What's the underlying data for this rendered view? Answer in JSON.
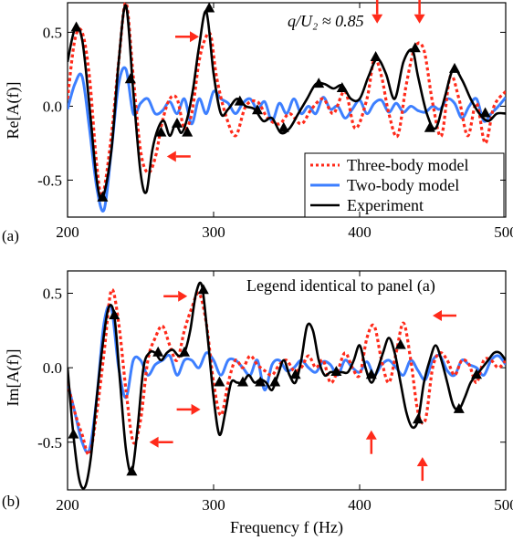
{
  "chart_data": [
    {
      "panel_label": "(a)",
      "type": "line",
      "ylabel": "Re[A(f)]",
      "annotation": "q/U₂ ≈ 0.85",
      "xlim": [
        200,
        500
      ],
      "ylim": [
        -0.75,
        0.7
      ],
      "xticks": [
        200,
        300,
        400,
        500
      ],
      "yticks": [
        -0.5,
        0.0,
        0.5
      ],
      "legend": [
        "Three-body model",
        "Two-body model",
        "Experiment"
      ],
      "legend_position": "bottom-right",
      "arrows": [
        {
          "x": 290,
          "y": 0.47,
          "dir": "right"
        },
        {
          "x": 268,
          "y": -0.34,
          "dir": "left"
        },
        {
          "x": 412,
          "y": 0.56,
          "dir": "down"
        },
        {
          "x": 441,
          "y": 0.56,
          "dir": "down"
        }
      ],
      "series": [
        {
          "name": "Three-body model",
          "color": "#ff2a1a",
          "style": "dotted",
          "x": [
            200,
            205,
            210,
            215,
            220,
            224,
            230,
            235,
            240,
            245,
            250,
            255,
            260,
            265,
            270,
            275,
            280,
            285,
            290,
            294,
            298,
            302,
            308,
            315,
            322,
            330,
            337,
            345,
            352,
            360,
            367,
            375,
            382,
            390,
            397,
            405,
            410,
            415,
            420,
            426,
            432,
            438,
            444,
            450,
            456,
            462,
            468,
            474,
            480,
            486,
            492,
            500
          ],
          "y": [
            0.05,
            0.45,
            0.5,
            0.2,
            -0.4,
            -0.6,
            -0.2,
            0.3,
            0.7,
            0.2,
            -0.3,
            -0.45,
            -0.35,
            -0.1,
            0.05,
            0.05,
            -0.15,
            -0.05,
            0.3,
            0.45,
            0.48,
            0.2,
            -0.05,
            -0.2,
            0.0,
            0.03,
            -0.08,
            -0.12,
            -0.05,
            -0.12,
            -0.02,
            0.05,
            -0.05,
            0.1,
            -0.15,
            0.05,
            0.32,
            0.2,
            -0.05,
            -0.2,
            0.15,
            0.4,
            0.38,
            0.02,
            -0.2,
            0.2,
            0.05,
            -0.2,
            0.02,
            -0.25,
            0.0,
            0.1
          ]
        },
        {
          "name": "Two-body model",
          "color": "#3d7fff",
          "style": "solid",
          "x": [
            200,
            205,
            210,
            215,
            220,
            225,
            230,
            235,
            240,
            245,
            250,
            255,
            260,
            265,
            270,
            275,
            280,
            285,
            290,
            295,
            300,
            305,
            310,
            315,
            320,
            325,
            330,
            335,
            340,
            345,
            350,
            355,
            360,
            365,
            370,
            375,
            380,
            385,
            390,
            395,
            400,
            405,
            410,
            415,
            420,
            425,
            430,
            435,
            440,
            445,
            450,
            455,
            460,
            465,
            470,
            475,
            480,
            485,
            490,
            495,
            500
          ],
          "y": [
            -0.02,
            0.15,
            0.2,
            -0.15,
            -0.55,
            -0.7,
            -0.3,
            0.15,
            0.25,
            -0.05,
            0.02,
            0.05,
            -0.05,
            -0.03,
            0.03,
            -0.05,
            0.05,
            -0.12,
            0.05,
            -0.05,
            0.1,
            0.05,
            0.02,
            -0.05,
            0.02,
            0.05,
            -0.02,
            0.03,
            -0.1,
            0.02,
            -0.05,
            0.05,
            -0.05,
            0.0,
            -0.05,
            0.06,
            -0.02,
            0.0,
            -0.08,
            -0.02,
            0.04,
            -0.05,
            0.02,
            0.04,
            -0.04,
            0.02,
            -0.04,
            0.0,
            -0.03,
            -0.04,
            0.0,
            -0.02,
            0.05,
            0.02,
            -0.08,
            0.0,
            0.05,
            -0.1,
            -0.05,
            0.0,
            0.06
          ]
        },
        {
          "name": "Experiment",
          "color": "#000000",
          "style": "solid",
          "x": [
            200,
            205,
            210,
            215,
            220,
            224,
            230,
            235,
            240,
            245,
            250,
            254,
            258,
            262,
            266,
            270,
            274,
            278,
            282,
            286,
            290,
            295,
            300,
            305,
            310,
            316,
            322,
            328,
            334,
            340,
            346,
            352,
            358,
            364,
            370,
            376,
            382,
            388,
            394,
            400,
            406,
            412,
            418,
            424,
            430,
            436,
            440,
            446,
            452,
            458,
            464,
            470,
            476,
            482,
            488,
            494,
            500
          ],
          "y": [
            0.3,
            0.52,
            0.45,
            0.0,
            -0.5,
            -0.62,
            -0.3,
            0.3,
            0.68,
            0.1,
            -0.45,
            -0.58,
            -0.3,
            -0.15,
            -0.1,
            -0.2,
            -0.12,
            -0.18,
            -0.08,
            0.12,
            0.4,
            0.64,
            0.22,
            -0.05,
            -0.02,
            0.05,
            0.0,
            -0.02,
            -0.1,
            -0.08,
            -0.18,
            -0.15,
            -0.05,
            0.05,
            0.15,
            0.15,
            0.12,
            0.14,
            0.05,
            0.05,
            0.2,
            0.32,
            0.22,
            0.05,
            0.3,
            0.38,
            0.2,
            -0.05,
            -0.15,
            0.05,
            0.25,
            0.18,
            0.05,
            -0.05,
            -0.1,
            -0.05,
            -0.05
          ]
        }
      ],
      "markers": [
        [
          206,
          0.53
        ],
        [
          224,
          -0.62
        ],
        [
          243,
          0.18
        ],
        [
          264,
          -0.18
        ],
        [
          275,
          -0.12
        ],
        [
          282,
          -0.18
        ],
        [
          297,
          0.66
        ],
        [
          318,
          0.03
        ],
        [
          330,
          -0.03
        ],
        [
          348,
          -0.15
        ],
        [
          372,
          0.15
        ],
        [
          388,
          0.12
        ],
        [
          411,
          0.33
        ],
        [
          438,
          0.39
        ],
        [
          448,
          -0.15
        ],
        [
          465,
          0.25
        ],
        [
          486,
          -0.05
        ]
      ]
    },
    {
      "panel_label": "(b)",
      "type": "line",
      "xlabel": "Frequency f (Hz)",
      "ylabel": "Im[A(f)]",
      "annotation": "Legend identical to panel (a)",
      "xlim": [
        200,
        500
      ],
      "ylim": [
        -0.82,
        0.65
      ],
      "xticks": [
        200,
        300,
        400,
        500
      ],
      "yticks": [
        -0.5,
        0.0,
        0.5
      ],
      "arrows": [
        {
          "x": 282,
          "y": 0.48,
          "dir": "right"
        },
        {
          "x": 291,
          "y": -0.28,
          "dir": "right"
        },
        {
          "x": 256,
          "y": -0.5,
          "dir": "left"
        },
        {
          "x": 450,
          "y": 0.35,
          "dir": "left"
        },
        {
          "x": 408,
          "y": -0.42,
          "dir": "up"
        },
        {
          "x": 443,
          "y": -0.6,
          "dir": "up"
        }
      ],
      "series": [
        {
          "name": "Three-body model",
          "color": "#ff2a1a",
          "style": "dotted",
          "x": [
            200,
            205,
            210,
            215,
            220,
            225,
            230,
            235,
            240,
            245,
            250,
            255,
            260,
            265,
            270,
            275,
            280,
            285,
            290,
            295,
            300,
            305,
            310,
            315,
            320,
            325,
            330,
            335,
            340,
            345,
            350,
            355,
            360,
            365,
            370,
            375,
            380,
            385,
            390,
            395,
            400,
            405,
            410,
            415,
            420,
            425,
            430,
            435,
            440,
            445,
            450,
            455,
            460,
            465,
            470,
            475,
            480,
            485,
            490,
            495,
            500
          ],
          "y": [
            -0.1,
            -0.3,
            -0.45,
            -0.58,
            -0.3,
            0.1,
            0.52,
            0.3,
            -0.15,
            -0.5,
            -0.35,
            0.05,
            0.2,
            0.28,
            0.15,
            0.05,
            0.25,
            0.4,
            0.5,
            0.3,
            -0.1,
            -0.32,
            -0.1,
            0.05,
            0.0,
            0.08,
            0.02,
            -0.02,
            -0.05,
            0.02,
            0.05,
            -0.02,
            0.0,
            0.08,
            0.0,
            0.05,
            -0.1,
            -0.02,
            0.1,
            0.0,
            -0.05,
            0.2,
            0.28,
            0.05,
            -0.1,
            0.1,
            0.3,
            0.05,
            -0.3,
            -0.35,
            0.0,
            0.1,
            0.05,
            -0.05,
            0.05,
            0.02,
            -0.1,
            0.05,
            0.05,
            0.0,
            0.05
          ]
        },
        {
          "name": "Two-body model",
          "color": "#3d7fff",
          "style": "solid",
          "x": [
            200,
            205,
            210,
            215,
            220,
            225,
            230,
            235,
            240,
            245,
            250,
            255,
            260,
            265,
            270,
            275,
            280,
            285,
            290,
            295,
            300,
            305,
            310,
            315,
            320,
            325,
            330,
            335,
            340,
            345,
            350,
            355,
            360,
            365,
            370,
            375,
            380,
            385,
            390,
            395,
            400,
            405,
            410,
            415,
            420,
            425,
            430,
            435,
            440,
            445,
            450,
            455,
            460,
            465,
            470,
            475,
            480,
            485,
            490,
            495,
            500
          ],
          "y": [
            -0.1,
            -0.3,
            -0.5,
            -0.55,
            -0.2,
            0.3,
            0.4,
            0.0,
            -0.2,
            0.05,
            0.05,
            -0.05,
            0.02,
            0.05,
            0.08,
            -0.05,
            0.05,
            0.05,
            0.0,
            0.1,
            0.05,
            -0.05,
            0.05,
            0.05,
            0.0,
            -0.05,
            0.05,
            -0.15,
            0.02,
            0.05,
            -0.02,
            0.0,
            0.05,
            0.0,
            -0.03,
            0.04,
            0.02,
            -0.05,
            0.05,
            0.0,
            -0.03,
            0.04,
            -0.05,
            0.02,
            0.05,
            0.0,
            -0.05,
            0.05,
            -0.02,
            -0.08,
            0.05,
            0.08,
            -0.02,
            -0.05,
            0.05,
            0.02,
            0.0,
            -0.05,
            0.05,
            0.08,
            0.02
          ]
        },
        {
          "name": "Experiment",
          "color": "#000000",
          "style": "solid",
          "x": [
            200,
            204,
            208,
            212,
            216,
            220,
            224,
            228,
            232,
            236,
            240,
            244,
            248,
            252,
            256,
            260,
            264,
            268,
            272,
            276,
            280,
            284,
            288,
            292,
            296,
            300,
            304,
            308,
            312,
            316,
            320,
            324,
            328,
            332,
            336,
            340,
            344,
            348,
            352,
            356,
            360,
            364,
            368,
            372,
            376,
            380,
            384,
            388,
            392,
            396,
            400,
            404,
            408,
            412,
            416,
            420,
            424,
            428,
            432,
            436,
            440,
            444,
            448,
            452,
            456,
            460,
            464,
            468,
            472,
            476,
            480,
            484,
            488,
            492,
            496,
            500
          ],
          "y": [
            0.0,
            -0.45,
            -0.75,
            -0.8,
            -0.6,
            -0.2,
            0.15,
            0.4,
            0.35,
            -0.1,
            -0.55,
            -0.7,
            -0.4,
            0.0,
            0.1,
            0.1,
            0.05,
            0.1,
            0.12,
            0.08,
            0.1,
            0.25,
            0.5,
            0.55,
            0.2,
            -0.2,
            -0.45,
            -0.3,
            -0.1,
            -0.1,
            -0.1,
            -0.05,
            -0.1,
            -0.08,
            -0.1,
            -0.15,
            -0.05,
            0.05,
            -0.05,
            -0.1,
            0.05,
            0.28,
            0.25,
            0.05,
            -0.05,
            -0.03,
            -0.03,
            -0.03,
            -0.03,
            0.05,
            0.15,
            0.0,
            -0.1,
            -0.02,
            0.1,
            0.2,
            0.1,
            -0.1,
            -0.3,
            -0.4,
            -0.35,
            -0.1,
            0.05,
            0.15,
            0.05,
            -0.1,
            -0.25,
            -0.28,
            -0.2,
            -0.1,
            -0.05,
            0.0,
            0.05,
            0.1,
            0.1,
            0.05
          ]
        }
      ],
      "markers": [
        [
          204,
          -0.45
        ],
        [
          232,
          0.35
        ],
        [
          244,
          -0.7
        ],
        [
          262,
          0.1
        ],
        [
          280,
          0.1
        ],
        [
          293,
          0.52
        ],
        [
          304,
          -0.1
        ],
        [
          320,
          -0.1
        ],
        [
          332,
          -0.1
        ],
        [
          342,
          -0.1
        ],
        [
          356,
          -0.05
        ],
        [
          384,
          -0.03
        ],
        [
          408,
          -0.05
        ],
        [
          428,
          0.15
        ],
        [
          440,
          -0.35
        ],
        [
          468,
          -0.28
        ],
        [
          480,
          -0.05
        ]
      ]
    }
  ]
}
